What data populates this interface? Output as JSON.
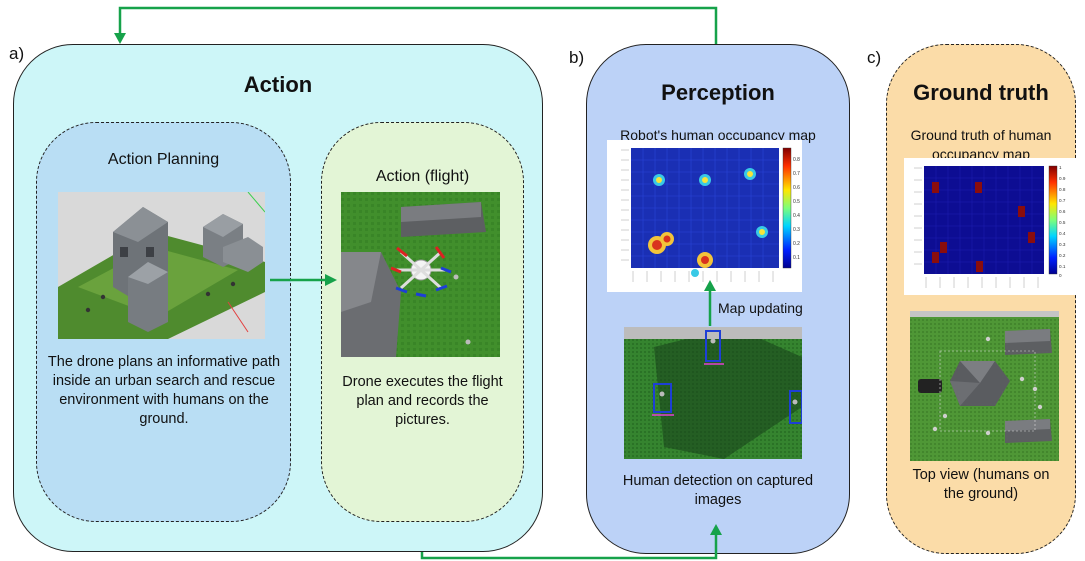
{
  "panels": {
    "a": {
      "letter": "a)",
      "title": "Action",
      "planning": {
        "title": "Action Planning",
        "caption": "The drone plans an informative path inside an urban search and rescue environment with humans on the ground."
      },
      "flight": {
        "title": "Action (flight)",
        "caption": "Drone executes the flight plan and records the pictures."
      }
    },
    "b": {
      "letter": "b)",
      "title": "Perception",
      "map_caption": "Robot's human occupancy map",
      "update_label": "Map updating",
      "detection_caption": "Human detection on captured images"
    },
    "c": {
      "letter": "c)",
      "title": "Ground truth",
      "map_caption": "Ground truth of human occupancy map",
      "topview_caption": "Top view (humans on the ground)"
    }
  },
  "colorbar_ticks_robot": [
    "0.8",
    "0.7",
    "0.6",
    "0.5",
    "0.4",
    "0.3",
    "0.2",
    "0.1"
  ],
  "colorbar_ticks_truth": [
    "1",
    "0.9",
    "0.8",
    "0.7",
    "0.6",
    "0.5",
    "0.4",
    "0.3",
    "0.2",
    "0.1",
    "0"
  ],
  "colors": {
    "action_bg": "#cdf6f8",
    "planning_bg": "#b9def4",
    "flight_bg": "#e3f5d6",
    "perception_bg": "#bcd2f7",
    "truth_bg": "#fbdca8",
    "arrow": "#16a24a"
  }
}
